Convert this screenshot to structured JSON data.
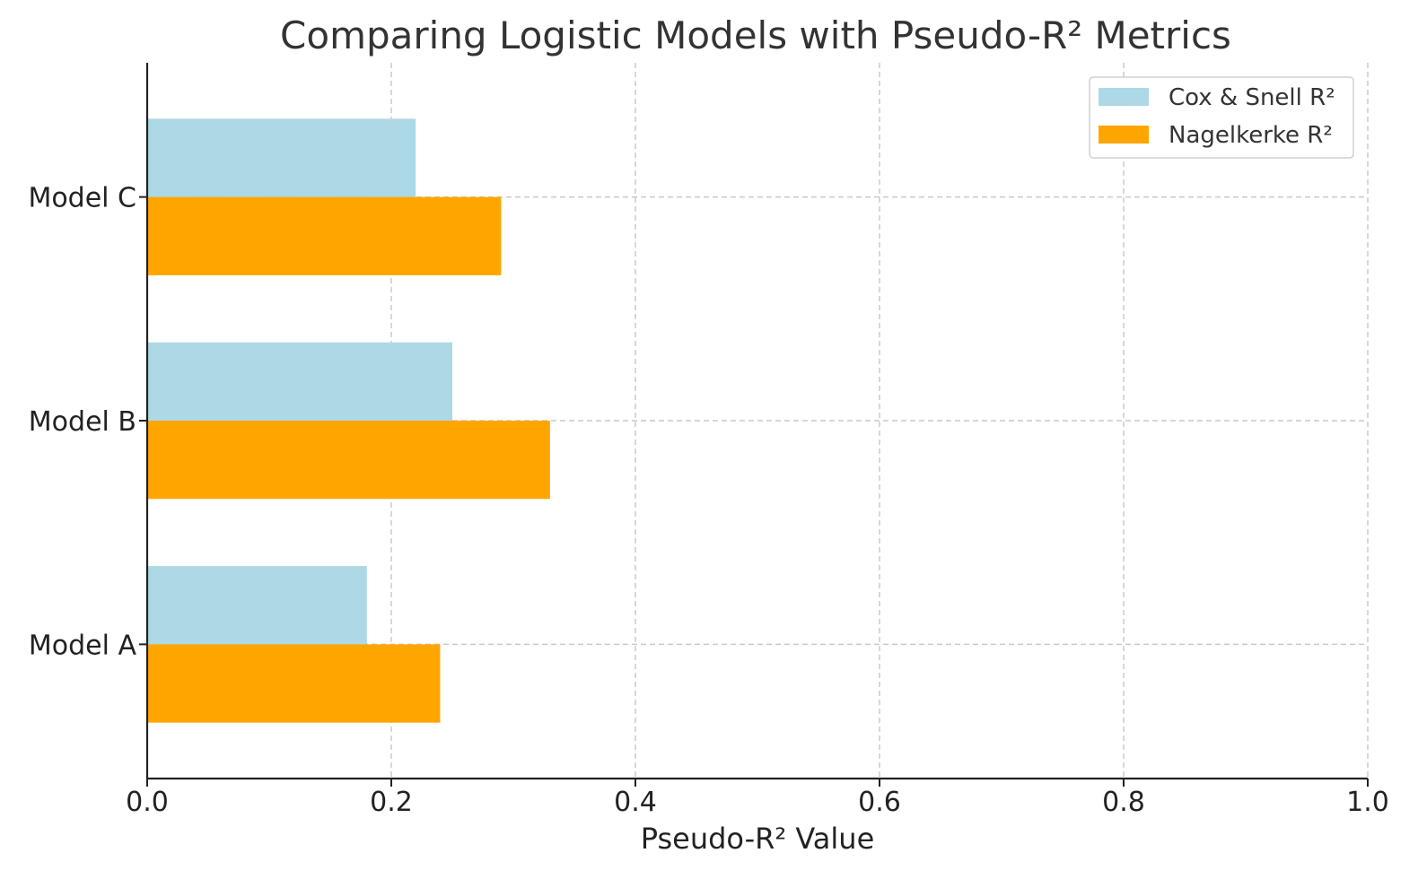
{
  "chart_data": {
    "type": "bar",
    "orientation": "horizontal",
    "title": "Comparing Logistic Models with Pseudo-R² Metrics",
    "xlabel": "Pseudo-R² Value",
    "ylabel": "",
    "xlim": [
      0,
      1.0
    ],
    "x_ticks": [
      "0.0",
      "0.2",
      "0.4",
      "0.6",
      "0.8",
      "1.0"
    ],
    "categories": [
      "Model A",
      "Model B",
      "Model C"
    ],
    "series": [
      {
        "name": "Cox & Snell R²",
        "values": [
          0.18,
          0.25,
          0.22
        ],
        "color": "#add8e6"
      },
      {
        "name": "Nagelkerke R²",
        "values": [
          0.24,
          0.33,
          0.29
        ],
        "color": "#ffa500"
      }
    ],
    "grid": true,
    "legend_position": "top-right"
  }
}
